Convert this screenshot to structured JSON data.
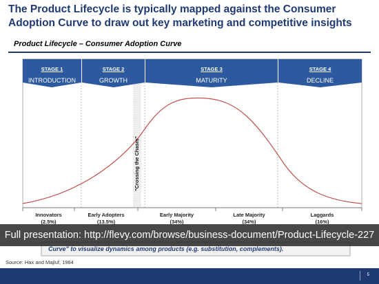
{
  "title": "The Product Lifecycle is typically mapped against the Consumer Adoption Curve to draw out key marketing and competitive insights",
  "subtitle": "Product Lifecycle – Consumer Adoption Curve",
  "stages": [
    {
      "label": "STAGE 1",
      "name": "INTRODUCTION"
    },
    {
      "label": "STAGE 2",
      "name": "GROWTH"
    },
    {
      "label": "STAGE 3",
      "name": "MATURITY"
    },
    {
      "label": "STAGE 4",
      "name": "DECLINE"
    }
  ],
  "chasm_label": "\"Crossing the Chasm\"",
  "segments": [
    {
      "name": "Innovators",
      "pct": "(2.5%)"
    },
    {
      "name": "Early Adopters",
      "pct": "(13.5%)"
    },
    {
      "name": "Early Majority",
      "pct": "(34%)"
    },
    {
      "name": "Late Majority",
      "pct": "(34%)"
    },
    {
      "name": "Laggards",
      "pct": "(16%)"
    }
  ],
  "hidden_caption": "Curve\" to visualize dynamics among products (e.g. substitution, complements).",
  "overlay_text": "Full presentation: http://flevy.com/browse/business-document/Product-Lifecycle-227",
  "source": "Source: Hax and Majluf, 1984",
  "page_number": "5",
  "colors": {
    "navy": "#1f3a73",
    "stage_blue": "#2d5a9e",
    "curve": "#c0504d"
  }
}
